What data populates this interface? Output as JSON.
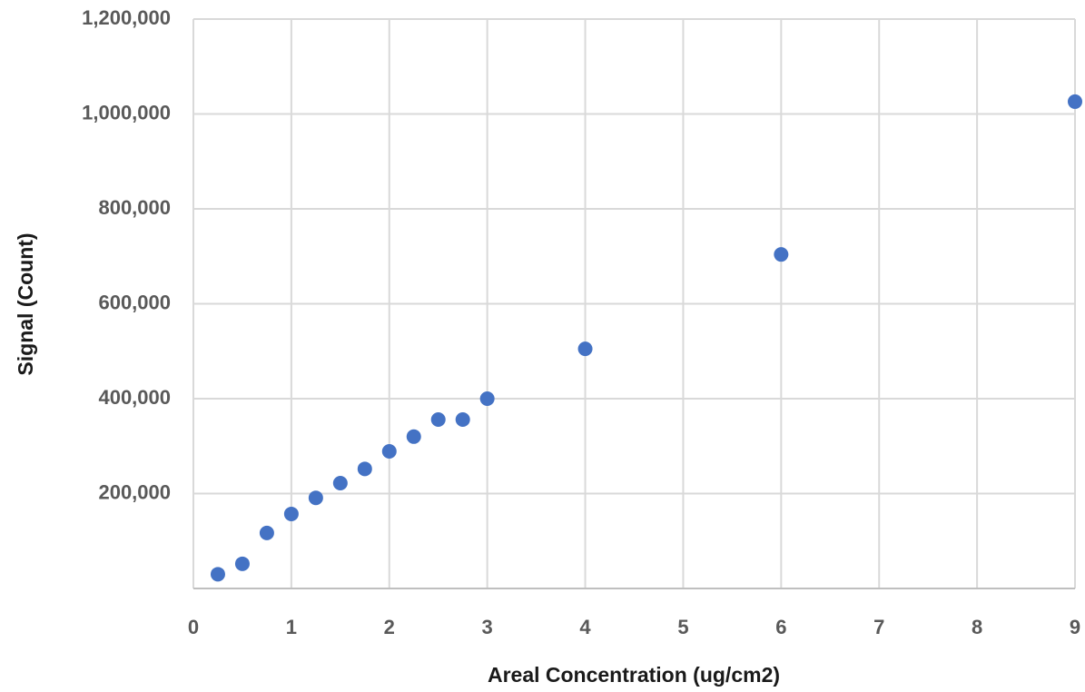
{
  "chart_data": {
    "type": "scatter",
    "x_label": "Areal Concentration  (ug/cm2)",
    "y_label": "Signal (Count)",
    "x": [
      0.25,
      0.5,
      0.75,
      1,
      1.25,
      1.5,
      1.75,
      2,
      2.25,
      2.5,
      2.75,
      3,
      4,
      6,
      9
    ],
    "values": [
      30000,
      52000,
      117000,
      157000,
      191000,
      222000,
      252000,
      289000,
      320000,
      356000,
      356000,
      400000,
      505000,
      704000,
      1026000
    ],
    "color": "#4472c4",
    "xlim": [
      0,
      9
    ],
    "xticks": [
      0,
      1,
      2,
      3,
      4,
      5,
      6,
      7,
      8,
      9
    ],
    "ylim": [
      0,
      1200000
    ],
    "yticks": [
      {
        "value": 200000,
        "label": "200,000"
      },
      {
        "value": 400000,
        "label": "400,000"
      },
      {
        "value": 600000,
        "label": "600,000"
      },
      {
        "value": 800000,
        "label": "800,000"
      },
      {
        "value": 1000000,
        "label": "1,000,000"
      },
      {
        "value": 1200000,
        "label": "1,200,000"
      }
    ],
    "grid": true
  }
}
